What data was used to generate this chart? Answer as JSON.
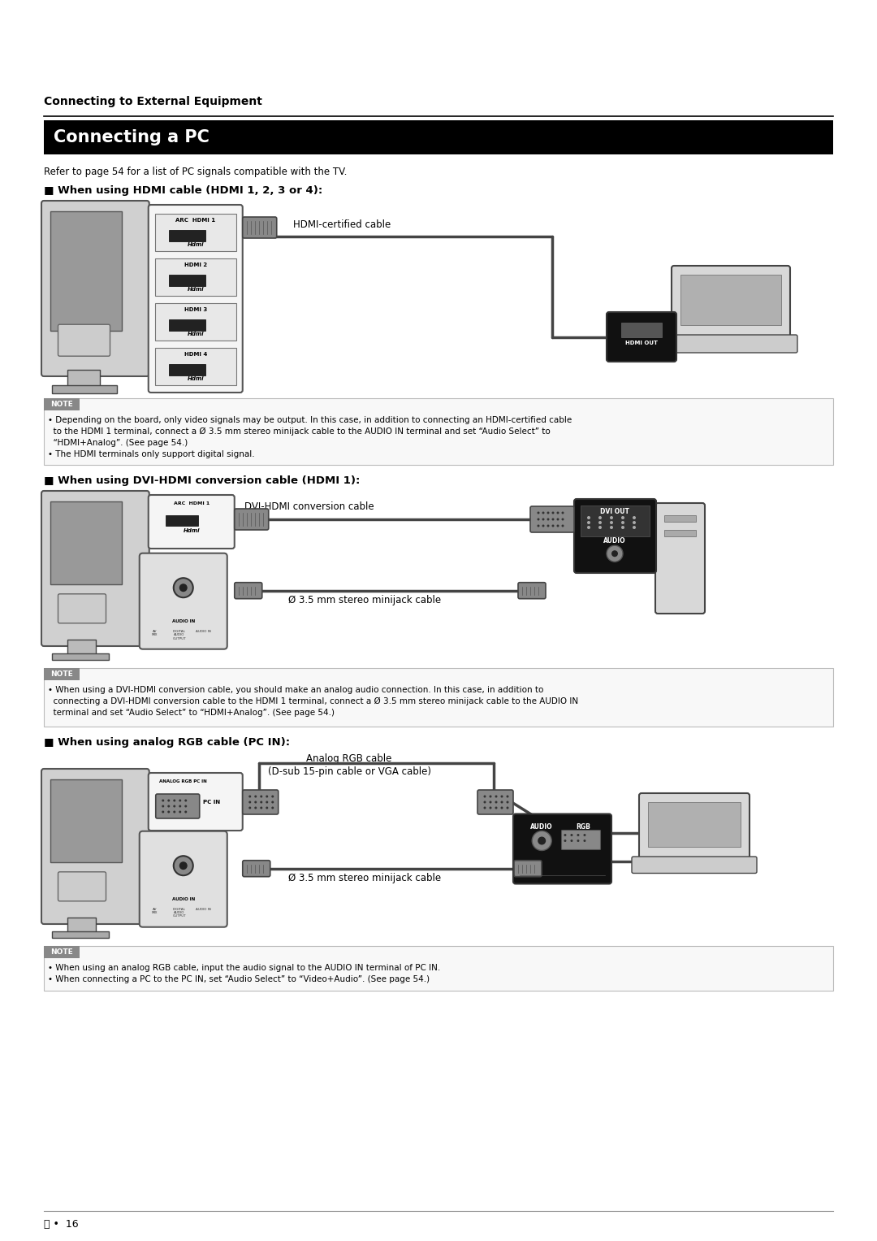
{
  "bg_color": "#ffffff",
  "page_width": 10.8,
  "page_height": 15.27,
  "top_label": "Connecting to External Equipment",
  "title": "Connecting a PC",
  "title_bg": "#000000",
  "title_color": "#ffffff",
  "subtitle": "Refer to page 54 for a list of PC signals compatible with the TV.",
  "section1_header": "■ When using HDMI cable (HDMI 1, 2, 3 or 4):",
  "section2_header": "■ When using DVI-HDMI conversion cable (HDMI 1):",
  "section3_header": "■ When using analog RGB cable (PC IN):",
  "hdmi_cable_label": "HDMI-certified cable",
  "dvi_cable_label": "DVI-HDMI conversion cable",
  "minijack_label1": "Ø 3.5 mm stereo minijack cable",
  "minijack_label2": "Ø 3.5 mm stereo minijack cable",
  "analog_cable_label": "Analog RGB cable\n(D-sub 15-pin cable or VGA cable)",
  "note_label": "NOTE",
  "note1_text": "• Depending on the board, only video signals may be output. In this case, in addition to connecting an HDMI-certified cable\n  to the HDMI 1 terminal, connect a Ø 3.5 mm stereo minijack cable to the AUDIO IN terminal and set “Audio Select” to\n  “HDMI+Analog”. (See page 54.)\n• The HDMI terminals only support digital signal.",
  "note2_text": "• When using a DVI-HDMI conversion cable, you should make an analog audio connection. In this case, in addition to\n  connecting a DVI-HDMI conversion cable to the HDMI 1 terminal, connect a Ø 3.5 mm stereo minijack cable to the AUDIO IN\n  terminal and set “Audio Select” to “HDMI+Analog”. (See page 54.)",
  "note3_text": "• When using an analog RGB cable, input the audio signal to the AUDIO IN terminal of PC IN.\n• When connecting a PC to the PC IN, set “Audio Select” to “Video+Audio”. (See page 54.)",
  "footer": "ⓔ •  16",
  "dvi_out_label": "DVI OUT",
  "audio_label": "AUDIO",
  "audio_label2": "AUDIO",
  "rgb_label": "RGB",
  "hdmi_out_label": "HDMI OUT",
  "pc_in_label": "PC IN",
  "arc_label": "ARC"
}
